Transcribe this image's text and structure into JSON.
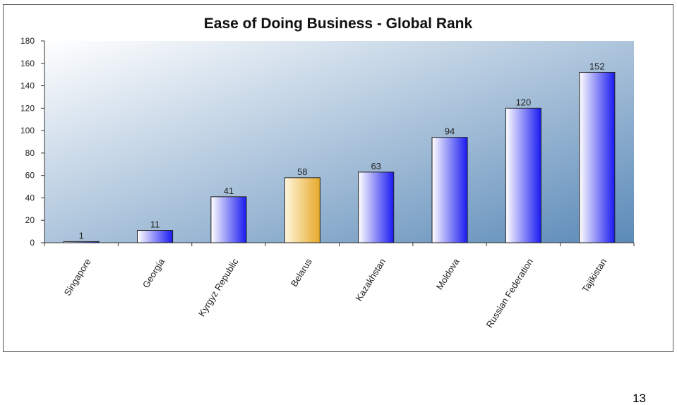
{
  "chart_data": {
    "type": "bar",
    "title": "Ease of Doing Business - Global Rank",
    "categories": [
      "Singapore",
      "Georgia",
      "Kyrgyz Republic",
      "Belarus",
      "Kazakhstan",
      "Moldova",
      "Russian Federation",
      "Tajikistan"
    ],
    "values": [
      1,
      11,
      41,
      58,
      63,
      94,
      120,
      152
    ],
    "data_labels": [
      "1",
      "11",
      "41",
      "58",
      "63",
      "94",
      "120",
      "152"
    ],
    "highlight_category": "Belarus",
    "ylim": [
      0,
      180
    ],
    "yticks": [
      0,
      20,
      40,
      60,
      80,
      100,
      120,
      140,
      160,
      180
    ],
    "xlabel": "",
    "ylabel": "",
    "grid": false,
    "legend": "none",
    "colors": {
      "bar_light": "#ffffff",
      "bar_dark": "#1a1af0",
      "highlight_light": "#fff6dc",
      "highlight_dark": "#e6a82a",
      "plot_bg_light": "#ffffff",
      "plot_bg_dark": "#5b8ab8"
    }
  },
  "page": {
    "number": "13"
  }
}
